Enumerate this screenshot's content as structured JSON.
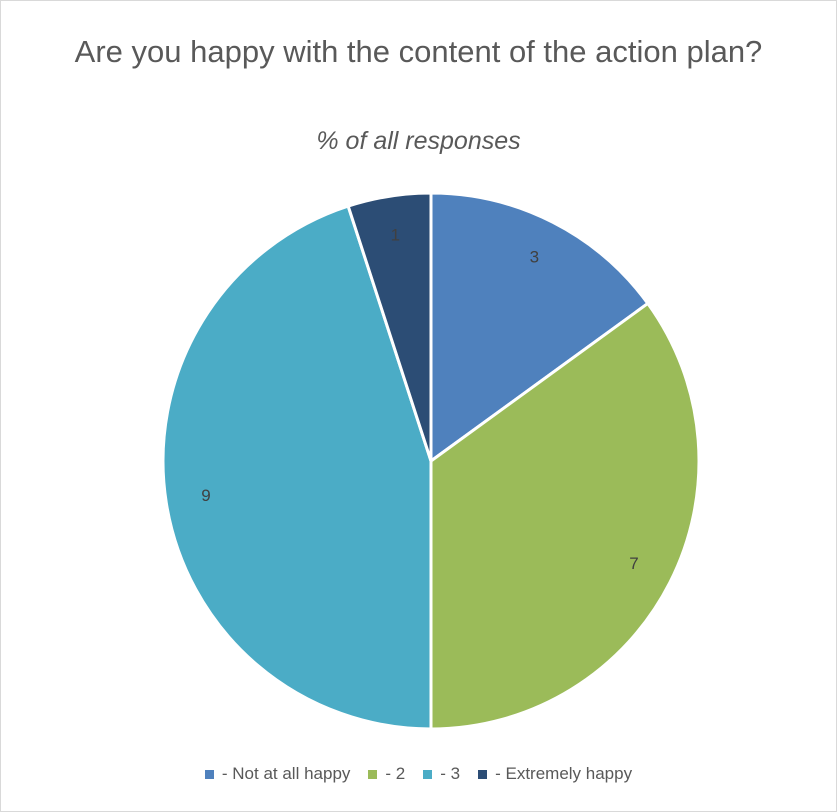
{
  "chart_data": {
    "type": "pie",
    "title": "Are you happy with the content of the action plan?",
    "subtitle": "% of all responses",
    "categories": [
      " - Not at all happy",
      " - 2",
      " - 3",
      " - Extremely happy"
    ],
    "values": [
      3,
      7,
      9,
      1
    ],
    "data_labels": [
      "3",
      "7",
      "9",
      "1"
    ],
    "colors": [
      "#4f81bd",
      "#9bbb59",
      "#4bacc6",
      "#2c4d75"
    ],
    "legend_position": "bottom",
    "start_angle": "top, clockwise"
  }
}
